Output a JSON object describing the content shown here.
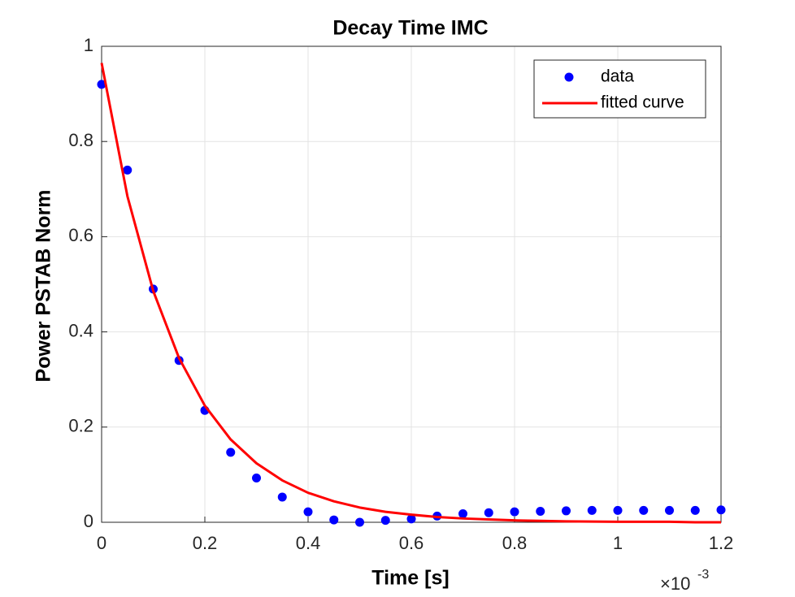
{
  "chart_data": {
    "type": "scatter-line",
    "title": "Decay Time IMC",
    "x_label": "Time [s]",
    "y_label": "Power PSTAB Norm",
    "x_multiplier": {
      "base": "×10",
      "exponent": "-3"
    },
    "x": [
      0,
      0.05,
      0.1,
      0.15,
      0.2,
      0.25,
      0.3,
      0.35,
      0.4,
      0.45,
      0.5,
      0.55,
      0.6,
      0.65,
      0.7,
      0.75,
      0.8,
      0.85,
      0.9,
      0.95,
      1.0,
      1.05,
      1.1,
      1.15,
      1.2
    ],
    "series": [
      {
        "name": "data",
        "kind": "points",
        "color": "#0000ff",
        "values": [
          0.92,
          0.74,
          0.49,
          0.34,
          0.235,
          0.147,
          0.093,
          0.053,
          0.022,
          0.005,
          0.0,
          0.004,
          0.007,
          0.013,
          0.018,
          0.02,
          0.022,
          0.023,
          0.024,
          0.025,
          0.025,
          0.025,
          0.025,
          0.025,
          0.026
        ]
      },
      {
        "name": "fitted curve",
        "kind": "line",
        "color": "#ff0000",
        "values": [
          0.965,
          0.685,
          0.486,
          0.345,
          0.245,
          0.174,
          0.124,
          0.088,
          0.062,
          0.044,
          0.031,
          0.022,
          0.016,
          0.011,
          0.008,
          0.006,
          0.004,
          0.003,
          0.002,
          0.0015,
          0.001,
          0.001,
          0.001,
          0,
          0
        ]
      }
    ],
    "xlim": [
      0,
      1.2
    ],
    "xticks": [
      0,
      0.2,
      0.4,
      0.6,
      0.8,
      1,
      1.2
    ],
    "ylim": [
      0,
      1
    ],
    "yticks": [
      0,
      0.2,
      0.4,
      0.6,
      0.8,
      1
    ],
    "grid": true,
    "legend": "upper-right"
  }
}
